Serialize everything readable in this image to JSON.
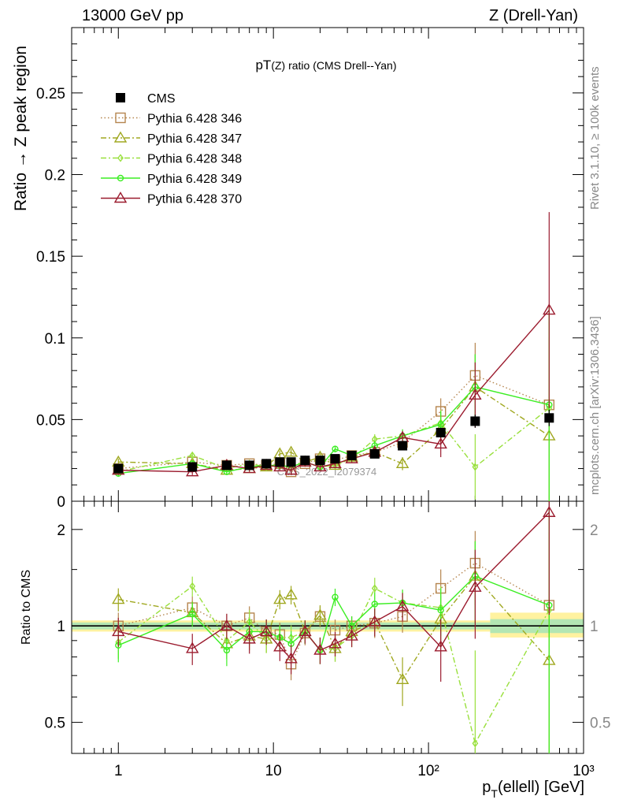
{
  "header": {
    "left": "13000 GeV pp",
    "right": "Z (Drell-Yan)"
  },
  "side_labels": {
    "rivet": "Rivet 3.1.10, ≥ 100k events",
    "mcplots": "mcplots.cern.ch [arXiv:1306.3436]"
  },
  "watermark": "CMS_2022_I2079374",
  "chart_data": [
    {
      "type": "line",
      "title": "pT(Z) ratio (CMS Drell--Yan)",
      "xlabel": "p_T(ellell) [GeV]",
      "ylabel": "Ratio → Z peak region",
      "x_scale": "log",
      "xlim": [
        0.5,
        1000
      ],
      "ylim": [
        0,
        0.29
      ],
      "yticks": [
        0,
        0.05,
        0.1,
        0.15,
        0.2,
        0.25
      ],
      "ytick_labels": [
        "0",
        "0.05",
        "0.1",
        "0.15",
        "0.2",
        "0.25"
      ],
      "x": [
        1,
        3,
        5,
        7,
        9,
        11,
        13,
        16,
        20,
        25,
        32,
        45,
        68,
        120,
        200,
        600
      ],
      "legend_position": "top-left",
      "series": [
        {
          "name": "CMS",
          "color": "#000000",
          "marker": "square-filled",
          "line": "none",
          "values": [
            0.02,
            0.021,
            0.022,
            0.022,
            0.023,
            0.024,
            0.024,
            0.025,
            0.025,
            0.026,
            0.028,
            0.029,
            0.034,
            0.042,
            0.049,
            0.051
          ]
        },
        {
          "name": "Pythia 6.428 346",
          "color": "#b5854e",
          "marker": "square-open",
          "line": "dotted",
          "values": [
            0.02,
            0.024,
            0.022,
            0.023,
            0.022,
            0.023,
            0.018,
            0.023,
            0.026,
            0.025,
            0.028,
            0.03,
            0.036,
            0.055,
            0.077,
            0.059
          ]
        },
        {
          "name": "Pythia 6.428 347",
          "color": "#a0a821",
          "marker": "triangle-open",
          "line": "dashdot",
          "values": [
            0.024,
            0.023,
            0.019,
            0.02,
            0.021,
            0.029,
            0.03,
            0.024,
            0.027,
            0.022,
            0.027,
            0.03,
            0.023,
            0.044,
            0.07,
            0.04
          ]
        },
        {
          "name": "Pythia 6.428 348",
          "color": "#99e03d",
          "marker": "diamond-open",
          "line": "dashdot",
          "values": [
            0.018,
            0.028,
            0.02,
            0.023,
            0.021,
            0.022,
            0.022,
            0.024,
            0.021,
            0.022,
            0.026,
            0.038,
            0.04,
            0.048,
            0.021,
            0.057
          ]
        },
        {
          "name": "Pythia 6.428 349",
          "color": "#3cee23",
          "marker": "circle-open",
          "line": "solid",
          "values": [
            0.017,
            0.023,
            0.018,
            0.021,
            0.022,
            0.022,
            0.021,
            0.024,
            0.021,
            0.032,
            0.028,
            0.034,
            0.04,
            0.047,
            0.07,
            0.059
          ]
        },
        {
          "name": "Pythia 6.428 370",
          "color": "#9b1b2e",
          "marker": "triangle-open",
          "line": "solid",
          "values": [
            0.019,
            0.018,
            0.022,
            0.02,
            0.022,
            0.021,
            0.019,
            0.024,
            0.021,
            0.023,
            0.026,
            0.03,
            0.039,
            0.035,
            0.065,
            0.117
          ]
        }
      ],
      "errors": {
        "CMS": [
          0.001,
          0.001,
          0.001,
          0.001,
          0.001,
          0.001,
          0.001,
          0.001,
          0.001,
          0.001,
          0.001,
          0.001,
          0.002,
          0.003,
          0.004,
          0.005
        ],
        "mc": [
          0.002,
          0.002,
          0.002,
          0.002,
          0.002,
          0.002,
          0.002,
          0.002,
          0.002,
          0.002,
          0.002,
          0.003,
          0.004,
          0.008,
          0.02,
          0.06
        ]
      }
    },
    {
      "type": "line",
      "xlabel": "p_T(ellell) [GeV]",
      "ylabel": "Ratio to CMS",
      "x_scale": "log",
      "y_scale": "log",
      "xlim": [
        0.5,
        1000
      ],
      "ylim": [
        0.4,
        2.45
      ],
      "yticks": [
        0.5,
        1,
        2
      ],
      "ytick_labels": [
        "0.5",
        "1",
        "2"
      ],
      "xticks": [
        1,
        10,
        100,
        1000
      ],
      "xtick_labels": [
        "1",
        "10",
        "10²",
        "10³"
      ],
      "x": [
        1,
        3,
        5,
        7,
        9,
        11,
        13,
        16,
        20,
        25,
        32,
        45,
        68,
        120,
        200,
        600
      ],
      "series": [
        {
          "name": "Pythia 6.428 346",
          "color": "#b5854e",
          "values": [
            1.0,
            1.14,
            1.0,
            1.06,
            0.96,
            0.94,
            0.76,
            0.95,
            1.07,
            0.97,
            1.0,
            1.02,
            1.07,
            1.31,
            1.57,
            1.16
          ]
        },
        {
          "name": "Pythia 6.428 347",
          "color": "#a0a821",
          "values": [
            1.21,
            1.1,
            0.88,
            0.93,
            0.91,
            1.21,
            1.25,
            0.96,
            1.08,
            0.85,
            0.96,
            1.03,
            0.68,
            1.05,
            1.43,
            0.78
          ]
        },
        {
          "name": "Pythia 6.428 348",
          "color": "#99e03d",
          "values": [
            0.89,
            1.33,
            0.9,
            1.03,
            0.91,
            0.92,
            0.92,
            0.96,
            0.84,
            0.85,
            0.93,
            1.31,
            1.18,
            1.14,
            0.43,
            1.12
          ]
        },
        {
          "name": "Pythia 6.428 349",
          "color": "#3cee23",
          "values": [
            0.87,
            1.09,
            0.84,
            0.96,
            0.96,
            0.92,
            0.88,
            0.96,
            0.84,
            1.23,
            1.0,
            1.17,
            1.18,
            1.12,
            1.43,
            1.16
          ]
        },
        {
          "name": "Pythia 6.428 370",
          "color": "#9b1b2e",
          "values": [
            0.96,
            0.85,
            1.0,
            0.91,
            0.96,
            0.86,
            0.79,
            0.96,
            0.84,
            0.88,
            0.93,
            1.03,
            1.15,
            0.86,
            1.32,
            2.26
          ]
        }
      ],
      "band_color_inner": "#b3e6b3",
      "band_color_outer": "#fff2a0"
    }
  ]
}
